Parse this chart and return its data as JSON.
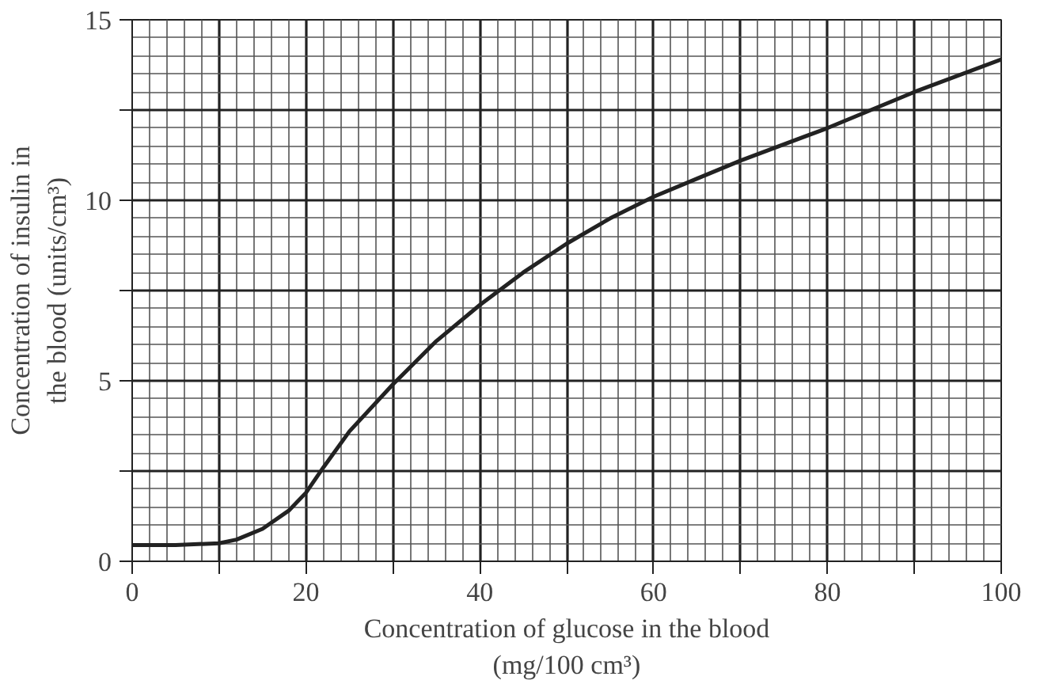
{
  "chart_data": {
    "type": "line",
    "xlabel": "Concentration of glucose in the blood\n(mg/100 cm³)",
    "ylabel": "Concentration of insulin in\nthe blood (units/cm³)",
    "x": [
      0,
      5,
      10,
      12,
      15,
      18,
      20,
      22,
      25,
      30,
      35,
      40,
      45,
      50,
      55,
      60,
      65,
      70,
      80,
      90,
      100
    ],
    "series": [
      {
        "color": "#222222",
        "values": [
          0.45,
          0.45,
          0.5,
          0.6,
          0.9,
          1.4,
          1.9,
          2.6,
          3.6,
          4.9,
          6.1,
          7.1,
          8.0,
          8.8,
          9.5,
          10.1,
          10.6,
          11.1,
          12.0,
          13.0,
          13.9
        ]
      }
    ],
    "xlim": [
      0,
      100
    ],
    "ylim": [
      0,
      15
    ],
    "xticks": [
      0,
      {
        "value": 10,
        "label": null
      },
      20,
      {
        "value": 30,
        "label": null
      },
      40,
      {
        "value": 50,
        "label": null
      },
      60,
      {
        "value": 70,
        "label": null
      },
      80,
      {
        "value": 90,
        "label": null
      },
      100
    ],
    "yticks": [
      0,
      {
        "value": 2.5,
        "label": null
      },
      5,
      {
        "value": 7.5,
        "label": null
      },
      10,
      {
        "value": 12.5,
        "label": null
      },
      15
    ],
    "grid": true,
    "line_style": "solid"
  }
}
